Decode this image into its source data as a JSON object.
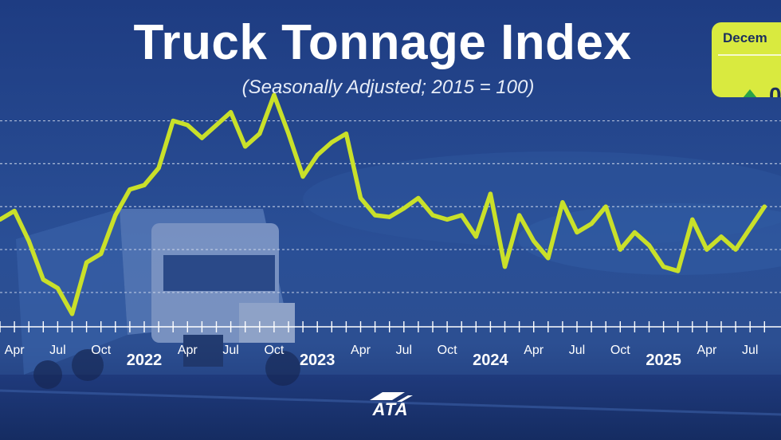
{
  "title": "Truck Tonnage Index",
  "subtitle": "(Seasonally Adjusted; 2015 = 100)",
  "badge": {
    "label": "Decem",
    "value": "0"
  },
  "logo": {
    "text": "ATA"
  },
  "colors": {
    "line": "#c9e02a",
    "background": "#1f3f86",
    "badge": "#d9ea3f",
    "arrow": "#2aa448",
    "grid": "#dbe3f2"
  },
  "chart_data": {
    "type": "line",
    "title": "Truck Tonnage Index",
    "subtitle": "(Seasonally Adjusted; 2015 = 100)",
    "x_axis": {
      "labels": [
        {
          "index": 1,
          "text": "Apr",
          "year": false
        },
        {
          "index": 4,
          "text": "Jul",
          "year": false
        },
        {
          "index": 7,
          "text": "Oct",
          "year": false
        },
        {
          "index": 10,
          "text": "2022",
          "year": true
        },
        {
          "index": 13,
          "text": "Apr",
          "year": false
        },
        {
          "index": 16,
          "text": "Jul",
          "year": false
        },
        {
          "index": 19,
          "text": "Oct",
          "year": false
        },
        {
          "index": 22,
          "text": "2023",
          "year": true
        },
        {
          "index": 25,
          "text": "Apr",
          "year": false
        },
        {
          "index": 28,
          "text": "Jul",
          "year": false
        },
        {
          "index": 31,
          "text": "Oct",
          "year": false
        },
        {
          "index": 34,
          "text": "2024",
          "year": true
        },
        {
          "index": 37,
          "text": "Apr",
          "year": false
        },
        {
          "index": 40,
          "text": "Jul",
          "year": false
        },
        {
          "index": 43,
          "text": "Oct",
          "year": false
        },
        {
          "index": 46,
          "text": "2025",
          "year": true
        },
        {
          "index": 49,
          "text": "Apr",
          "year": false
        },
        {
          "index": 52,
          "text": "Jul",
          "year": false
        }
      ]
    },
    "y_range": [
      96,
      122
    ],
    "gridlines": [
      120,
      115,
      110,
      105,
      100
    ],
    "grid": true,
    "series": [
      {
        "values": [
          108.5,
          109.5,
          106,
          101.5,
          100.5,
          97.5,
          103.5,
          104.5,
          109,
          112,
          112.5,
          114.5,
          120,
          119.5,
          118,
          119.5,
          121,
          117,
          118.5,
          123,
          118.5,
          113.5,
          116,
          117.5,
          118.5,
          111,
          109,
          108.8,
          109.8,
          111,
          109,
          108.5,
          109,
          106.5,
          111.5,
          103,
          109,
          106,
          104,
          110.5,
          107,
          108,
          110,
          105,
          107,
          105.5,
          103,
          102.5,
          108.5,
          105,
          106.5,
          105,
          107.5,
          110
        ]
      }
    ]
  }
}
